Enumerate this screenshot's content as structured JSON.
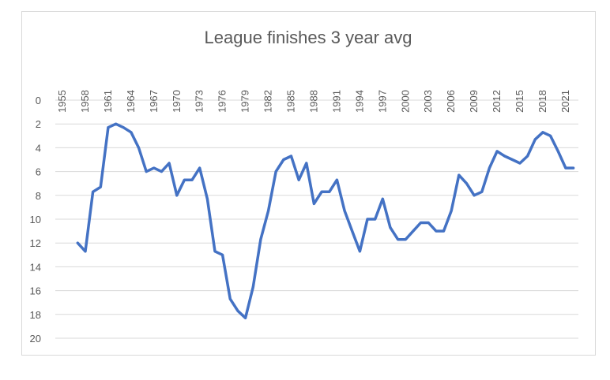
{
  "chart_data": {
    "type": "line",
    "title": "League finishes 3 year avg",
    "xlabel": "",
    "ylabel": "",
    "y_reversed": true,
    "x_axis_position": "top",
    "ylim": [
      20,
      0
    ],
    "y_ticks": [
      0,
      2,
      4,
      6,
      8,
      10,
      12,
      14,
      16,
      18,
      20
    ],
    "x_tick_labels": [
      "1955",
      "1958",
      "1961",
      "1964",
      "1967",
      "1970",
      "1973",
      "1976",
      "1979",
      "1982",
      "1985",
      "1988",
      "1991",
      "1994",
      "1997",
      "2000",
      "2003",
      "2006",
      "2009",
      "2012",
      "2015",
      "2018",
      "2021"
    ],
    "grid": "horizontal",
    "legend": "none",
    "series": [
      {
        "color": "#4472c4",
        "x": [
          1957,
          1958,
          1959,
          1960,
          1961,
          1962,
          1963,
          1964,
          1965,
          1966,
          1967,
          1968,
          1969,
          1970,
          1971,
          1972,
          1973,
          1974,
          1975,
          1976,
          1977,
          1978,
          1979,
          1980,
          1981,
          1982,
          1983,
          1984,
          1985,
          1986,
          1987,
          1988,
          1989,
          1990,
          1991,
          1992,
          1993,
          1994,
          1995,
          1996,
          1997,
          1998,
          1999,
          2000,
          2001,
          2002,
          2003,
          2004,
          2005,
          2006,
          2007,
          2008,
          2009,
          2010,
          2011,
          2012,
          2013,
          2014,
          2015,
          2016,
          2017,
          2018,
          2019,
          2020,
          2021,
          2022
        ],
        "values": [
          12.0,
          12.7,
          7.7,
          7.3,
          2.3,
          2.0,
          2.3,
          2.7,
          4.0,
          6.0,
          5.7,
          6.0,
          5.3,
          8.0,
          6.7,
          6.7,
          5.7,
          8.3,
          12.7,
          13.0,
          16.7,
          17.7,
          18.3,
          15.7,
          11.7,
          9.3,
          6.0,
          5.0,
          4.7,
          6.7,
          5.3,
          8.7,
          7.7,
          7.7,
          6.7,
          9.3,
          11.0,
          12.7,
          10.0,
          10.0,
          8.3,
          10.7,
          11.7,
          11.7,
          11.0,
          10.3,
          10.3,
          11.0,
          11.0,
          9.3,
          6.3,
          7.0,
          8.0,
          7.7,
          5.7,
          4.3,
          4.7,
          5.0,
          5.3,
          4.7,
          3.3,
          2.7,
          3.0,
          4.3,
          5.7,
          5.7
        ]
      }
    ]
  }
}
